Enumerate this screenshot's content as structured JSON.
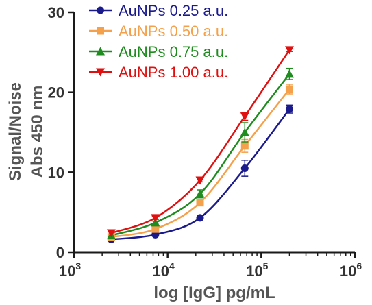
{
  "chart_data": {
    "type": "scatter",
    "xlabel": "log [IgG] pg/mL",
    "ylabel_lines": [
      "Signal/Noise",
      "Abs 450 nm"
    ],
    "x_scale": "log",
    "xlim": [
      1000,
      1000000
    ],
    "ylim": [
      0,
      30
    ],
    "x_tick_labels": [
      {
        "base": "10",
        "exp": "3"
      },
      {
        "base": "10",
        "exp": "4"
      },
      {
        "base": "10",
        "exp": "5"
      },
      {
        "base": "10",
        "exp": "6"
      }
    ],
    "y_ticks": [
      0,
      10,
      20,
      30
    ],
    "legend_position": "top-left",
    "series": [
      {
        "name": "AuNPs 0.25 a.u.",
        "color": "#1a1a8c",
        "marker": "circle",
        "x": [
          2500,
          7400,
          22200,
          66700,
          200000
        ],
        "y": [
          1.6,
          2.2,
          4.3,
          10.5,
          17.9
        ],
        "err": [
          0.1,
          0.2,
          0.2,
          1.0,
          0.5
        ]
      },
      {
        "name": "AuNPs 0.50 a.u.",
        "color": "#f5a04a",
        "marker": "square",
        "x": [
          2500,
          7400,
          22200,
          66700,
          200000
        ],
        "y": [
          1.9,
          2.9,
          6.2,
          13.3,
          20.4
        ],
        "err": [
          0.1,
          0.2,
          0.3,
          0.8,
          0.6
        ]
      },
      {
        "name": "AuNPs 0.75 a.u.",
        "color": "#1e8c1e",
        "marker": "triangle-up",
        "x": [
          2500,
          7400,
          22200,
          66700,
          200000
        ],
        "y": [
          2.1,
          3.7,
          7.3,
          15.0,
          22.3
        ],
        "err": [
          0.1,
          0.2,
          0.5,
          1.2,
          0.7
        ]
      },
      {
        "name": "AuNPs 1.00 a.u.",
        "color": "#e01010",
        "marker": "triangle-down",
        "x": [
          2500,
          7400,
          22200,
          66700,
          200000
        ],
        "y": [
          2.4,
          4.3,
          9.0,
          17.0,
          25.3
        ],
        "err": [
          0.1,
          0.2,
          0.2,
          0.5,
          0.2
        ]
      }
    ]
  }
}
